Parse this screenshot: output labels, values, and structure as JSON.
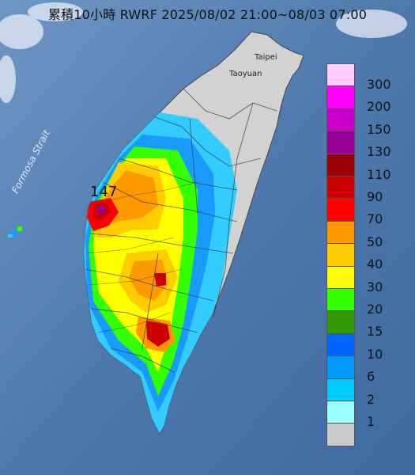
{
  "title": "累積10小時 RWRF 2025/08/02 21:00~08/03 07:00",
  "labels": {
    "strait": "Formosa Strait",
    "taipei": "Taipei",
    "taoyuan": "Taoyuan",
    "max_value": "147"
  },
  "legend": {
    "items": [
      {
        "label": "300",
        "color": "#ffccff"
      },
      {
        "label": "200",
        "color": "#ff00ff"
      },
      {
        "label": "150",
        "color": "#cc00cc"
      },
      {
        "label": "130",
        "color": "#990099"
      },
      {
        "label": "110",
        "color": "#990000"
      },
      {
        "label": "90",
        "color": "#cc0000"
      },
      {
        "label": "70",
        "color": "#ff0000"
      },
      {
        "label": "50",
        "color": "#ff9900"
      },
      {
        "label": "40",
        "color": "#ffcc00"
      },
      {
        "label": "30",
        "color": "#ffff00"
      },
      {
        "label": "20",
        "color": "#33ff00"
      },
      {
        "label": "15",
        "color": "#339900"
      },
      {
        "label": "10",
        "color": "#0066ff"
      },
      {
        "label": "6",
        "color": "#0099ff"
      },
      {
        "label": "2",
        "color": "#00ccff"
      },
      {
        "label": "1",
        "color": "#99ffff"
      },
      {
        "label": "",
        "color": "#c8c8c8"
      }
    ]
  }
}
